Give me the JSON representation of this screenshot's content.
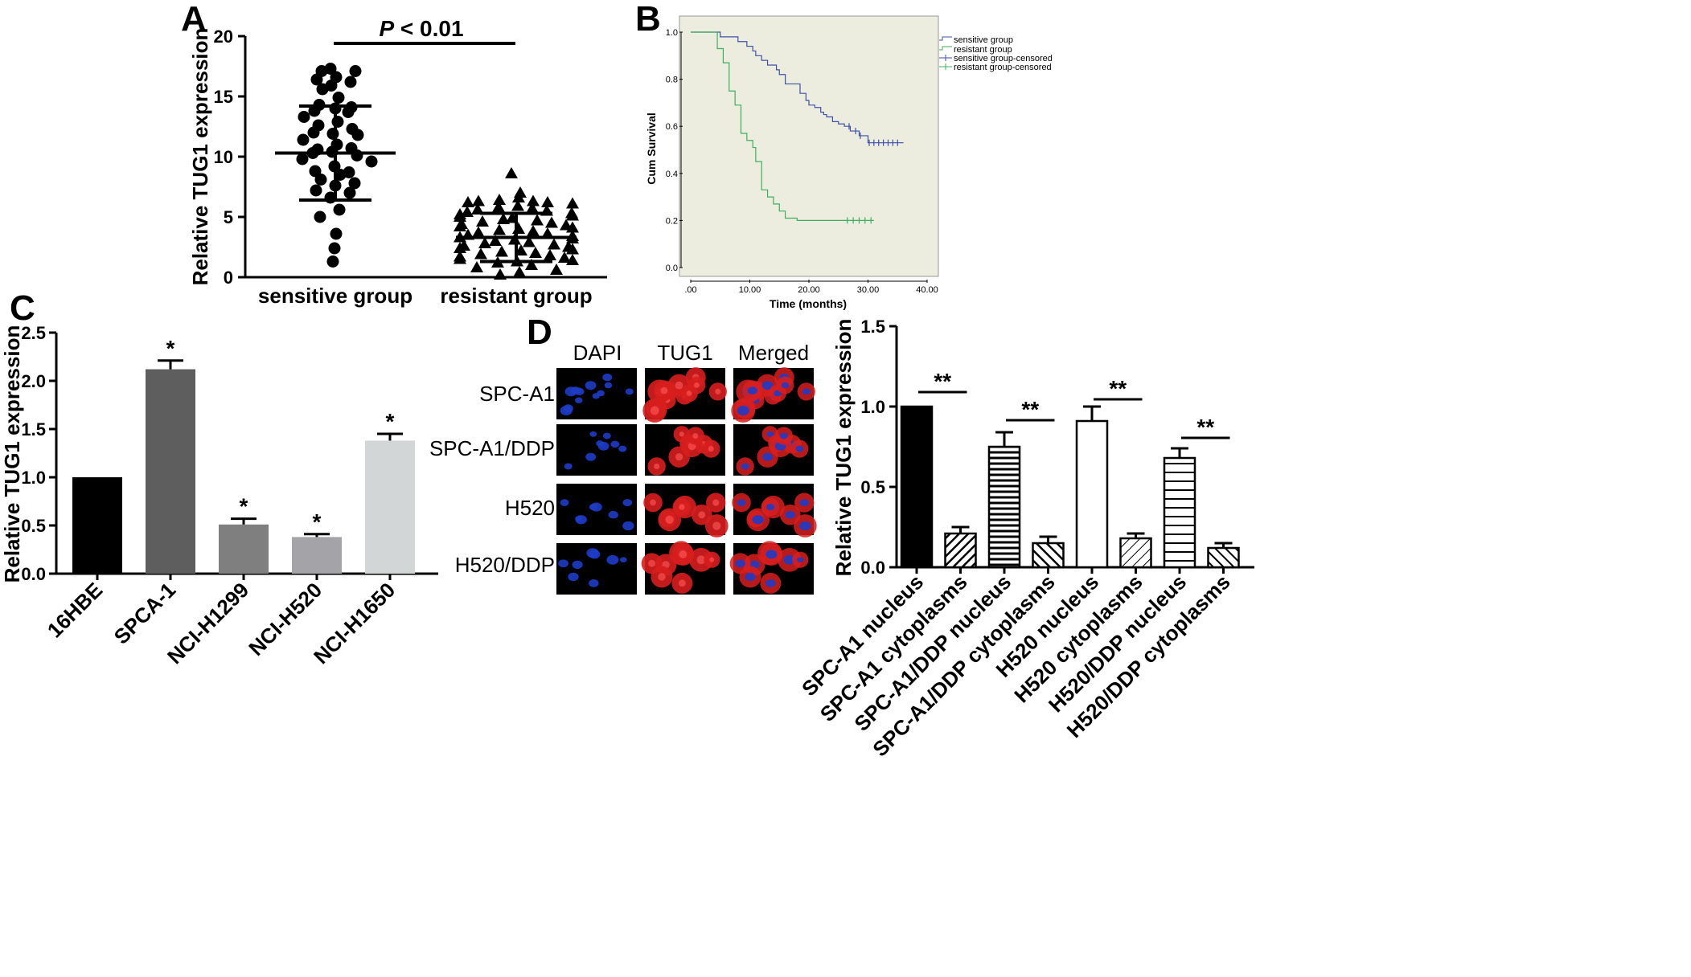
{
  "chart_data": [
    {
      "panel": "A",
      "type": "scatter",
      "ylabel": "Relative TUG1 expression",
      "ylim": [
        0,
        20
      ],
      "yticks": [
        "0",
        "5",
        "10",
        "15",
        "20"
      ],
      "categories": [
        "sensitive group",
        "resistant group"
      ],
      "significance": {
        "prefix": "P",
        "text": " < 0.01"
      },
      "series": [
        {
          "category": "sensitive group",
          "marker": "circle",
          "mean": 10.3,
          "sd_upper": 14.2,
          "sd_lower": 6.4,
          "values": [
            17.3,
            17.1,
            17.1,
            16.6,
            16.4,
            16.2,
            15.9,
            15.6,
            14.9,
            14.3,
            14.0,
            14.1,
            13.8,
            13.7,
            13.3,
            12.9,
            12.6,
            12.3,
            11.9,
            12.0,
            11.8,
            11.4,
            11.0,
            10.6,
            10.7,
            10.4,
            10.3,
            10.1,
            9.8,
            9.6,
            9.2,
            8.8,
            8.7,
            8.5,
            8.1,
            7.8,
            7.6,
            7.2,
            7.0,
            6.6,
            5.6,
            5.0,
            3.6,
            2.4,
            1.3
          ]
        },
        {
          "category": "resistant group",
          "marker": "triangle",
          "mean": 3.3,
          "sd_upper": 5.3,
          "sd_lower": 1.3,
          "values": [
            8.6,
            7.0,
            6.6,
            6.4,
            6.3,
            6.3,
            6.2,
            6.2,
            6.1,
            5.9,
            5.8,
            5.7,
            5.6,
            5.5,
            5.4,
            5.3,
            5.2,
            5.1,
            5.0,
            4.9,
            4.8,
            4.7,
            4.6,
            4.5,
            4.4,
            4.3,
            4.2,
            4.1,
            4.0,
            3.9,
            3.8,
            3.7,
            3.6,
            3.5,
            3.4,
            3.3,
            3.2,
            3.1,
            3.0,
            2.9,
            2.8,
            2.7,
            2.6,
            2.5,
            2.4,
            2.3,
            2.2,
            2.1,
            2.0,
            1.9,
            1.8,
            1.7,
            1.6,
            1.5,
            1.4,
            1.3,
            1.2,
            1.0,
            0.8,
            0.6,
            0.4,
            0.2
          ]
        }
      ]
    },
    {
      "panel": "B",
      "type": "line",
      "xlabel": "Time (months)",
      "ylabel": "Cum Survival",
      "xlim": [
        0,
        40
      ],
      "ylim": [
        0,
        1
      ],
      "xticks": [
        ".00",
        "10.00",
        "20.00",
        "30.00",
        "40.00"
      ],
      "yticks": [
        "0.0",
        "0.2",
        "0.4",
        "0.6",
        "0.8",
        "1.0"
      ],
      "legend": [
        "sensitive group",
        "resistant group",
        "sensitive group-censored",
        "resistant group-censored"
      ],
      "legend_position": "top-right",
      "colors": {
        "sensitive": "#3f51a8",
        "resistant": "#3fae5f",
        "plot_bg": "#ececdf"
      },
      "series": [
        {
          "name": "sensitive group",
          "x": [
            0,
            4.5,
            5.0,
            7.5,
            8.0,
            9.5,
            10.5,
            11.0,
            12.0,
            13.0,
            13.5,
            14.5,
            15.0,
            16.0,
            18.0,
            18.5,
            19.5,
            20.0,
            21.0,
            22.0,
            22.5,
            23.0,
            24.0,
            25.0,
            26.0,
            27.0,
            28.0,
            28.5,
            29.0,
            30.0,
            36.0
          ],
          "y": [
            1.0,
            1.0,
            0.98,
            0.98,
            0.96,
            0.94,
            0.92,
            0.9,
            0.88,
            0.86,
            0.86,
            0.84,
            0.82,
            0.78,
            0.78,
            0.74,
            0.71,
            0.69,
            0.68,
            0.66,
            0.65,
            0.64,
            0.62,
            0.61,
            0.6,
            0.58,
            0.58,
            0.56,
            0.56,
            0.53,
            0.53
          ],
          "censored_x": [
            26.8,
            27.9,
            28.7,
            30.2,
            31.0,
            31.8,
            32.6,
            33.4,
            34.2,
            35.0
          ]
        },
        {
          "name": "resistant group",
          "x": [
            0,
            3.5,
            4.5,
            5.5,
            6.5,
            7.5,
            8.5,
            9.5,
            10.5,
            11.0,
            12.0,
            13.0,
            14.0,
            15.0,
            16.0,
            18.0,
            27.0,
            31.0
          ],
          "y": [
            1.0,
            1.0,
            0.93,
            0.87,
            0.75,
            0.69,
            0.57,
            0.54,
            0.51,
            0.45,
            0.33,
            0.3,
            0.27,
            0.24,
            0.21,
            0.2,
            0.2,
            0.2
          ],
          "censored_x": [
            26.5,
            27.5,
            28.5,
            29.5,
            30.5
          ]
        }
      ]
    },
    {
      "panel": "C",
      "type": "bar",
      "ylabel": "Relative TUG1 expression",
      "ylim": [
        0,
        2.5
      ],
      "yticks": [
        "0.0",
        "0.5",
        "1.0",
        "1.5",
        "2.0",
        "2.5"
      ],
      "categories": [
        "16HBE",
        "SPCA-1",
        "NCI-H1299",
        "NCI-H520",
        "NCI-H1650"
      ],
      "values": [
        1.0,
        2.12,
        0.51,
        0.38,
        1.38
      ],
      "errors": [
        0.0,
        0.09,
        0.06,
        0.03,
        0.07
      ],
      "significance": [
        "",
        "*",
        "*",
        "*",
        "*"
      ],
      "colors": [
        "#000000",
        "#5e5e5e",
        "#7f7f7f",
        "#a4a4a8",
        "#d3d6d6"
      ]
    },
    {
      "panel": "D",
      "type": "bar",
      "ylabel": "Relative TUG1 expression",
      "ylim": [
        0,
        1.5
      ],
      "yticks": [
        "0.0",
        "0.5",
        "1.0",
        "1.5"
      ],
      "categories": [
        "SPC-A1 nucleus",
        "SPC-A1 cytoplasms",
        "SPC-A1/DDP nucleus",
        "SPC-A1/DDP cytoplasms",
        "H520 nucleus",
        "H520 cytoplasms",
        "H520/DDP nucleus",
        "H520/DDP cytoplasms"
      ],
      "values": [
        1.0,
        0.21,
        0.75,
        0.15,
        0.91,
        0.18,
        0.68,
        0.12
      ],
      "errors": [
        0.0,
        0.04,
        0.09,
        0.04,
        0.09,
        0.03,
        0.06,
        0.03
      ],
      "fills": [
        "solid",
        "diag-dense",
        "horizontal",
        "diag-back",
        "white",
        "diag-light",
        "horizontal-light",
        "diag-back-dense"
      ],
      "significance": [
        "**",
        "**",
        "**",
        "**"
      ]
    }
  ],
  "panel_letters": [
    "A",
    "B",
    "C",
    "D"
  ],
  "microscopy": {
    "columns": [
      "DAPI",
      "TUG1",
      "Merged"
    ],
    "rows": [
      "SPC-A1",
      "SPC-A1/DDP",
      "H520",
      "H520/DDP"
    ],
    "colors": {
      "dapi": "#1e3cc8",
      "tug1": "#d81e1e",
      "background": "#000000"
    }
  }
}
